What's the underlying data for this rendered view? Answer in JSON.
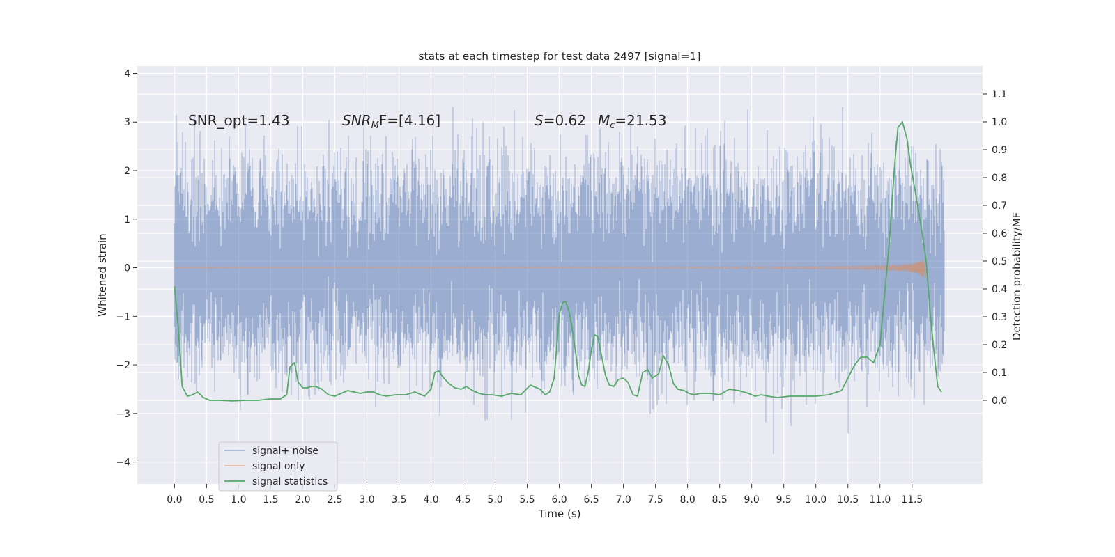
{
  "chart_data": {
    "type": "line",
    "title": "stats at each timestep for test data 2497 [signal=1]",
    "xlabel": "Time (s)",
    "ylabel": "Whitened strain",
    "ylabel_right": "Detection probability/MF",
    "xlim": [
      -0.58,
      12.6
    ],
    "ylim": [
      -4.45,
      4.15
    ],
    "ylim_right": [
      -0.3,
      1.2
    ],
    "x_ticks": [
      "0.0",
      "0.5",
      "1.0",
      "1.5",
      "2.0",
      "2.5",
      "3.0",
      "3.5",
      "4.0",
      "4.5",
      "5.0",
      "5.5",
      "6.0",
      "6.5",
      "7.0",
      "7.5",
      "8.0",
      "8.5",
      "9.0",
      "9.5",
      "10.0",
      "10.5",
      "11.0",
      "11.5"
    ],
    "y_ticks": [
      "4",
      "3",
      "2",
      "1",
      "0",
      "−1",
      "−2",
      "−3",
      "−4"
    ],
    "y_ticks_right": [
      "1.1",
      "1.0",
      "0.9",
      "0.8",
      "0.7",
      "0.6",
      "0.5",
      "0.4",
      "0.3",
      "0.2",
      "0.1",
      "0.0"
    ],
    "grid": true,
    "legend_position": "lower-left",
    "annotations": {
      "snr_opt": "SNR_opt=1.43",
      "snr_mf_base": "SNR",
      "snr_mf_sub": "M",
      "snr_mf_rest": "F=[4.16]",
      "s_var": "S",
      "s_rest": "=0.62",
      "mc_base": "M",
      "mc_sub": "c",
      "mc_rest": "=21.53"
    },
    "series": [
      {
        "name": "signal+ noise",
        "color": "#4c72b0",
        "t_range": [
          0.0,
          12.0
        ],
        "envelope_sigma": 1.0,
        "peak_max": 3.78,
        "peak_min": -4.07
      },
      {
        "name": "signal only",
        "color": "#dd8452",
        "t_range": [
          0.0,
          11.72
        ],
        "max_amplitude": 0.2
      },
      {
        "name": "signal statistics",
        "color": "#55a868",
        "axis": "right",
        "x": [
          0.0,
          0.06,
          0.12,
          0.2,
          0.28,
          0.36,
          0.45,
          0.55,
          0.7,
          0.9,
          1.1,
          1.3,
          1.5,
          1.65,
          1.75,
          1.8,
          1.87,
          1.93,
          2.0,
          2.07,
          2.13,
          2.2,
          2.3,
          2.4,
          2.5,
          2.6,
          2.7,
          2.8,
          2.9,
          3.0,
          3.1,
          3.2,
          3.3,
          3.45,
          3.6,
          3.75,
          3.9,
          4.0,
          4.06,
          4.12,
          4.2,
          4.28,
          4.37,
          4.47,
          4.55,
          4.65,
          4.75,
          4.85,
          4.95,
          5.1,
          5.25,
          5.4,
          5.55,
          5.7,
          5.78,
          5.85,
          5.92,
          6.0,
          6.05,
          6.1,
          6.15,
          6.2,
          6.25,
          6.3,
          6.35,
          6.4,
          6.45,
          6.5,
          6.55,
          6.6,
          6.65,
          6.72,
          6.78,
          6.85,
          6.92,
          7.0,
          7.07,
          7.15,
          7.22,
          7.3,
          7.38,
          7.45,
          7.55,
          7.62,
          7.7,
          7.78,
          7.85,
          7.95,
          8.02,
          8.1,
          8.2,
          8.35,
          8.5,
          8.65,
          8.8,
          8.95,
          9.05,
          9.15,
          9.25,
          9.4,
          9.6,
          9.8,
          10.0,
          10.2,
          10.4,
          10.5,
          10.6,
          10.7,
          10.8,
          10.9,
          11.0,
          11.08,
          11.15,
          11.22,
          11.28,
          11.35,
          11.42,
          11.48,
          11.55,
          11.6,
          11.66,
          11.72,
          11.78,
          11.84,
          11.9,
          11.96
        ],
        "values": [
          0.41,
          0.26,
          0.05,
          0.015,
          0.02,
          0.03,
          0.01,
          0.0,
          0.0,
          -0.002,
          0.0,
          0.0,
          0.005,
          0.005,
          0.02,
          0.12,
          0.135,
          0.065,
          0.045,
          0.045,
          0.05,
          0.05,
          0.04,
          0.02,
          0.015,
          0.025,
          0.035,
          0.03,
          0.025,
          0.03,
          0.03,
          0.02,
          0.015,
          0.02,
          0.02,
          0.03,
          0.015,
          0.04,
          0.1,
          0.105,
          0.08,
          0.06,
          0.045,
          0.04,
          0.05,
          0.035,
          0.025,
          0.02,
          0.02,
          0.015,
          0.025,
          0.02,
          0.055,
          0.04,
          0.02,
          0.03,
          0.08,
          0.31,
          0.35,
          0.355,
          0.32,
          0.26,
          0.18,
          0.09,
          0.055,
          0.05,
          0.1,
          0.18,
          0.235,
          0.23,
          0.17,
          0.09,
          0.055,
          0.05,
          0.075,
          0.08,
          0.065,
          0.02,
          0.015,
          0.1,
          0.11,
          0.08,
          0.095,
          0.16,
          0.13,
          0.06,
          0.04,
          0.035,
          0.025,
          0.02,
          0.025,
          0.025,
          0.02,
          0.04,
          0.035,
          0.025,
          0.015,
          0.02,
          0.015,
          0.01,
          0.015,
          0.015,
          0.015,
          0.02,
          0.035,
          0.08,
          0.125,
          0.155,
          0.155,
          0.135,
          0.2,
          0.4,
          0.58,
          0.82,
          0.98,
          1.0,
          0.94,
          0.84,
          0.75,
          0.68,
          0.6,
          0.5,
          0.32,
          0.18,
          0.05,
          0.03
        ]
      }
    ]
  }
}
